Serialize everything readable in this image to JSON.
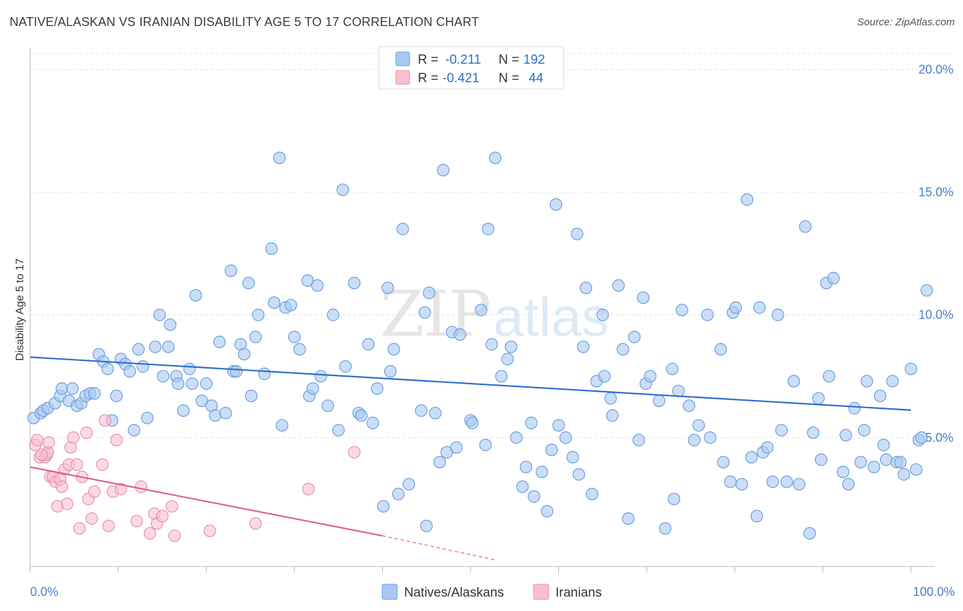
{
  "header": {
    "title": "NATIVE/ALASKAN VS IRANIAN DISABILITY AGE 5 TO 17 CORRELATION CHART",
    "source": "Source: ZipAtlas.com"
  },
  "watermark": {
    "zip": "ZIP",
    "atlas": "atlas"
  },
  "legend_top": [
    {
      "r_label": "R =",
      "r_value": "-0.211",
      "n_label": "N =",
      "n_value": "192",
      "color": "#a8c8f0",
      "stroke": "#6a9ede"
    },
    {
      "r_label": "R =",
      "r_value": "-0.421",
      "n_label": "N =",
      "n_value": "44",
      "color": "#f8bfd0",
      "stroke": "#e890aa"
    }
  ],
  "legend_bottom": [
    {
      "label": "Natives/Alaskans",
      "color": "#a8c8f0",
      "stroke": "#6a9ede"
    },
    {
      "label": "Iranians",
      "color": "#f8bfd0",
      "stroke": "#e890aa"
    }
  ],
  "chart_data": {
    "type": "scatter",
    "title": "NATIVE/ALASKAN VS IRANIAN DISABILITY AGE 5 TO 17 CORRELATION CHART",
    "xlabel": "",
    "ylabel": "Disability Age 5 to 17",
    "xlim": [
      0,
      100
    ],
    "ylim": [
      0,
      20.6
    ],
    "x_tick_labels": [
      "0.0%",
      "100.0%"
    ],
    "y_ticks": [
      5,
      10,
      15,
      20
    ],
    "y_tick_labels": [
      "5.0%",
      "10.0%",
      "15.0%",
      "20.0%"
    ],
    "grid": true,
    "legend_placement": "top-center",
    "series": [
      {
        "name": "Natives/Alaskans",
        "color": "#a8c8f0",
        "stroke": "#6a9ede",
        "trend": {
          "x": [
            0,
            100
          ],
          "y": [
            8.28,
            6.12
          ],
          "color": "#2f6ec9"
        },
        "points": [
          [
            0.4,
            5.8
          ],
          [
            1.2,
            6.0
          ],
          [
            1.5,
            6.1
          ],
          [
            2.0,
            6.2
          ],
          [
            2.8,
            6.4
          ],
          [
            3.4,
            6.7
          ],
          [
            3.6,
            7.0
          ],
          [
            4.4,
            6.5
          ],
          [
            4.8,
            7.0
          ],
          [
            5.3,
            6.3
          ],
          [
            5.8,
            6.4
          ],
          [
            6.3,
            6.7
          ],
          [
            6.8,
            6.8
          ],
          [
            7.3,
            6.8
          ],
          [
            7.8,
            8.4
          ],
          [
            8.3,
            8.1
          ],
          [
            8.8,
            7.8
          ],
          [
            9.3,
            5.7
          ],
          [
            9.8,
            6.7
          ],
          [
            10.3,
            8.2
          ],
          [
            10.8,
            8.0
          ],
          [
            11.3,
            7.7
          ],
          [
            11.8,
            5.3
          ],
          [
            12.3,
            8.6
          ],
          [
            12.8,
            7.9
          ],
          [
            13.3,
            5.8
          ],
          [
            14.2,
            8.7
          ],
          [
            14.7,
            10.0
          ],
          [
            15.1,
            7.5
          ],
          [
            15.7,
            8.7
          ],
          [
            15.9,
            9.6
          ],
          [
            16.6,
            7.5
          ],
          [
            16.8,
            7.2
          ],
          [
            17.4,
            6.1
          ],
          [
            18.1,
            7.8
          ],
          [
            18.4,
            7.2
          ],
          [
            18.8,
            10.8
          ],
          [
            19.5,
            6.5
          ],
          [
            20.0,
            7.2
          ],
          [
            20.6,
            6.3
          ],
          [
            21.0,
            5.9
          ],
          [
            21.5,
            8.9
          ],
          [
            22.2,
            6.0
          ],
          [
            22.8,
            11.8
          ],
          [
            23.1,
            7.7
          ],
          [
            23.4,
            7.7
          ],
          [
            23.9,
            8.8
          ],
          [
            24.3,
            8.4
          ],
          [
            24.8,
            11.3
          ],
          [
            25.1,
            6.7
          ],
          [
            25.6,
            9.1
          ],
          [
            25.9,
            10.0
          ],
          [
            26.6,
            7.6
          ],
          [
            27.4,
            12.7
          ],
          [
            27.7,
            10.5
          ],
          [
            28.3,
            16.4
          ],
          [
            28.6,
            5.5
          ],
          [
            29.0,
            10.3
          ],
          [
            29.6,
            10.4
          ],
          [
            30.0,
            9.1
          ],
          [
            30.6,
            8.6
          ],
          [
            31.5,
            11.4
          ],
          [
            31.7,
            6.7
          ],
          [
            32.1,
            7.0
          ],
          [
            32.6,
            11.2
          ],
          [
            33.0,
            7.5
          ],
          [
            33.8,
            6.3
          ],
          [
            34.4,
            10.0
          ],
          [
            35.0,
            5.3
          ],
          [
            35.5,
            15.1
          ],
          [
            35.8,
            7.9
          ],
          [
            36.8,
            11.3
          ],
          [
            37.3,
            6.0
          ],
          [
            37.6,
            5.9
          ],
          [
            38.4,
            8.8
          ],
          [
            38.9,
            5.6
          ],
          [
            39.4,
            7.0
          ],
          [
            40.1,
            2.2
          ],
          [
            40.6,
            11.1
          ],
          [
            40.9,
            7.7
          ],
          [
            41.3,
            8.6
          ],
          [
            41.8,
            2.7
          ],
          [
            42.3,
            13.5
          ],
          [
            43.0,
            3.1
          ],
          [
            44.4,
            6.1
          ],
          [
            44.8,
            10.1
          ],
          [
            45.0,
            1.4
          ],
          [
            45.3,
            10.9
          ],
          [
            46.0,
            6.0
          ],
          [
            46.5,
            4.0
          ],
          [
            46.9,
            15.9
          ],
          [
            47.3,
            4.4
          ],
          [
            47.9,
            9.3
          ],
          [
            48.4,
            4.6
          ],
          [
            48.8,
            9.2
          ],
          [
            50.0,
            5.7
          ],
          [
            50.2,
            5.6
          ],
          [
            51.2,
            10.2
          ],
          [
            51.7,
            4.7
          ],
          [
            52.0,
            13.5
          ],
          [
            52.4,
            8.8
          ],
          [
            52.8,
            16.4
          ],
          [
            53.5,
            7.5
          ],
          [
            54.2,
            8.2
          ],
          [
            54.6,
            8.7
          ],
          [
            55.2,
            5.0
          ],
          [
            55.9,
            3.0
          ],
          [
            56.3,
            3.8
          ],
          [
            56.9,
            5.6
          ],
          [
            57.2,
            2.6
          ],
          [
            58.1,
            3.6
          ],
          [
            58.7,
            2.0
          ],
          [
            59.2,
            4.5
          ],
          [
            59.7,
            14.5
          ],
          [
            60.0,
            5.5
          ],
          [
            60.8,
            5.0
          ],
          [
            61.6,
            4.2
          ],
          [
            62.1,
            13.3
          ],
          [
            62.3,
            3.5
          ],
          [
            62.8,
            8.7
          ],
          [
            63.1,
            11.1
          ],
          [
            63.8,
            2.7
          ],
          [
            64.3,
            7.3
          ],
          [
            65.0,
            10.0
          ],
          [
            65.2,
            7.5
          ],
          [
            65.9,
            6.6
          ],
          [
            66.1,
            5.9
          ],
          [
            66.8,
            11.2
          ],
          [
            67.3,
            8.6
          ],
          [
            67.9,
            1.7
          ],
          [
            68.6,
            9.1
          ],
          [
            69.1,
            4.9
          ],
          [
            69.6,
            10.7
          ],
          [
            69.9,
            7.2
          ],
          [
            70.4,
            7.5
          ],
          [
            71.4,
            6.5
          ],
          [
            72.1,
            1.3
          ],
          [
            72.9,
            7.8
          ],
          [
            73.1,
            2.5
          ],
          [
            73.6,
            6.9
          ],
          [
            74.0,
            10.2
          ],
          [
            74.8,
            6.3
          ],
          [
            75.4,
            4.9
          ],
          [
            75.9,
            5.5
          ],
          [
            76.9,
            10.0
          ],
          [
            77.2,
            5.0
          ],
          [
            78.4,
            8.6
          ],
          [
            78.7,
            4.0
          ],
          [
            79.5,
            3.2
          ],
          [
            79.8,
            10.1
          ],
          [
            80.1,
            10.3
          ],
          [
            80.8,
            3.1
          ],
          [
            81.4,
            14.7
          ],
          [
            81.9,
            4.2
          ],
          [
            82.5,
            1.8
          ],
          [
            82.8,
            10.3
          ],
          [
            83.2,
            4.4
          ],
          [
            83.7,
            4.6
          ],
          [
            84.3,
            3.2
          ],
          [
            84.9,
            10.0
          ],
          [
            85.3,
            5.3
          ],
          [
            85.9,
            3.2
          ],
          [
            86.7,
            7.3
          ],
          [
            87.3,
            3.1
          ],
          [
            88.0,
            13.6
          ],
          [
            88.5,
            1.1
          ],
          [
            88.9,
            5.2
          ],
          [
            89.5,
            6.6
          ],
          [
            89.8,
            4.1
          ],
          [
            90.4,
            11.3
          ],
          [
            90.7,
            7.5
          ],
          [
            91.2,
            11.5
          ],
          [
            92.3,
            3.6
          ],
          [
            92.6,
            5.1
          ],
          [
            92.9,
            3.1
          ],
          [
            93.6,
            6.2
          ],
          [
            94.3,
            4.0
          ],
          [
            94.7,
            5.3
          ],
          [
            95.0,
            7.3
          ],
          [
            95.8,
            3.8
          ],
          [
            96.5,
            6.7
          ],
          [
            96.9,
            4.7
          ],
          [
            97.2,
            4.1
          ],
          [
            97.9,
            7.3
          ],
          [
            98.4,
            4.0
          ],
          [
            98.8,
            4.0
          ],
          [
            99.2,
            3.5
          ],
          [
            100.0,
            7.8
          ],
          [
            100.6,
            3.7
          ],
          [
            100.9,
            4.9
          ],
          [
            101.8,
            11.0
          ],
          [
            101.2,
            5.0
          ]
        ]
      },
      {
        "name": "Iranians",
        "color": "#f8bfd0",
        "stroke": "#e890aa",
        "trend": {
          "x": [
            0,
            40
          ],
          "y": [
            3.8,
            1.0
          ],
          "color": "#e0608c",
          "dashed_to": [
            53,
            0
          ]
        },
        "points": [
          [
            0.6,
            4.7
          ],
          [
            0.8,
            4.9
          ],
          [
            1.1,
            4.2
          ],
          [
            1.7,
            4.2
          ],
          [
            1.9,
            4.3
          ],
          [
            2.0,
            4.4
          ],
          [
            2.1,
            4.8
          ],
          [
            2.3,
            3.4
          ],
          [
            2.6,
            3.4
          ],
          [
            2.9,
            3.2
          ],
          [
            3.1,
            2.2
          ],
          [
            3.4,
            3.3
          ],
          [
            3.6,
            3.0
          ],
          [
            3.9,
            3.7
          ],
          [
            4.2,
            2.3
          ],
          [
            4.4,
            3.9
          ],
          [
            4.6,
            4.6
          ],
          [
            4.9,
            5.0
          ],
          [
            5.3,
            3.9
          ],
          [
            5.6,
            1.3
          ],
          [
            5.9,
            3.4
          ],
          [
            6.4,
            5.2
          ],
          [
            6.6,
            2.5
          ],
          [
            7.0,
            1.7
          ],
          [
            7.3,
            2.8
          ],
          [
            8.2,
            3.9
          ],
          [
            8.5,
            5.7
          ],
          [
            8.9,
            1.4
          ],
          [
            9.4,
            2.8
          ],
          [
            9.8,
            4.9
          ],
          [
            10.3,
            2.9
          ],
          [
            12.1,
            1.6
          ],
          [
            12.6,
            3.0
          ],
          [
            13.6,
            1.1
          ],
          [
            14.1,
            1.9
          ],
          [
            14.4,
            1.5
          ],
          [
            15.0,
            1.8
          ],
          [
            16.4,
            1.0
          ],
          [
            16.1,
            2.2
          ],
          [
            20.4,
            1.2
          ],
          [
            25.6,
            1.5
          ],
          [
            31.6,
            2.9
          ],
          [
            36.8,
            4.4
          ],
          [
            1.3,
            4.3
          ]
        ]
      }
    ]
  }
}
